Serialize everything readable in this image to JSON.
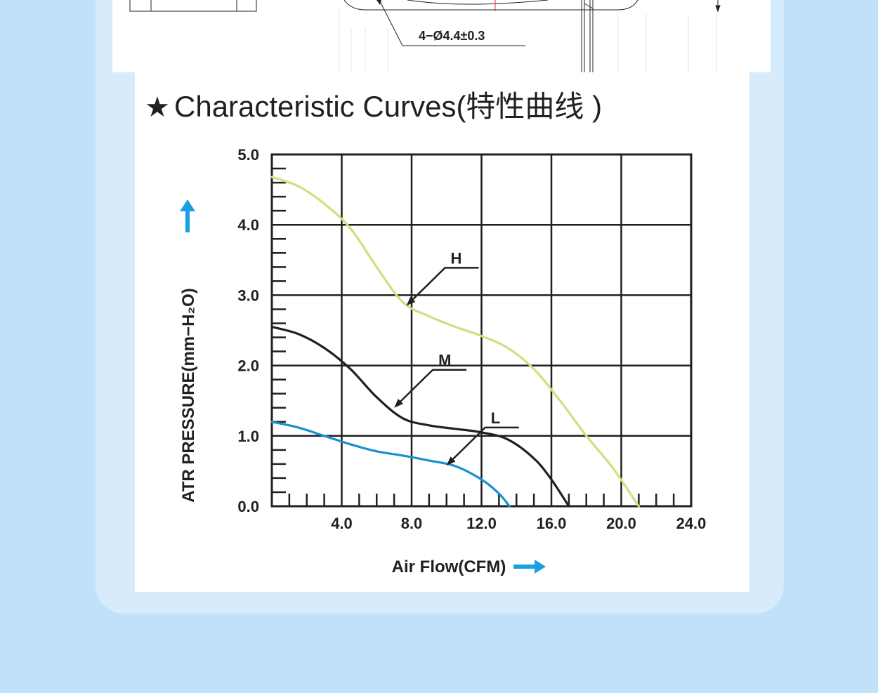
{
  "drawing": {
    "hole_dimension": "4−Ø4.4±0.3"
  },
  "section": {
    "star": "★",
    "title": "Characteristic Curves(特性曲线 )"
  },
  "colors": {
    "page_bg": "#bfe1fa",
    "panel_bg": "#d6ebfc",
    "grid": "#231f20",
    "curve_H": "#cfe07c",
    "curve_M": "#231f20",
    "curve_L": "#1790d2",
    "arrow_accent": "#1a9fe0"
  },
  "chart_data": {
    "type": "line",
    "title": "Characteristic Curves(特性曲线 )",
    "xlabel": "Air Flow(CFM)",
    "ylabel": "ATR PRESSURE(mm−H₂O)",
    "xlim": [
      0,
      24
    ],
    "ylim": [
      0,
      5
    ],
    "x_ticks": [
      "4.0",
      "8.0",
      "12.0",
      "16.0",
      "20.0",
      "24.0"
    ],
    "y_ticks": [
      "0.0",
      "1.0",
      "2.0",
      "3.0",
      "4.0",
      "5.0"
    ],
    "grid": true,
    "series": [
      {
        "name": "H",
        "color": "#cfe07c",
        "points": [
          [
            0,
            4.68
          ],
          [
            1.5,
            4.55
          ],
          [
            3.0,
            4.3
          ],
          [
            4.5,
            3.95
          ],
          [
            6.0,
            3.4
          ],
          [
            7.5,
            2.9
          ],
          [
            9.0,
            2.7
          ],
          [
            10.5,
            2.55
          ],
          [
            12.0,
            2.42
          ],
          [
            13.5,
            2.25
          ],
          [
            15.0,
            1.95
          ],
          [
            16.5,
            1.5
          ],
          [
            18.0,
            1.0
          ],
          [
            19.5,
            0.55
          ],
          [
            21.0,
            0.0
          ]
        ]
      },
      {
        "name": "M",
        "color": "#231f20",
        "points": [
          [
            0,
            2.55
          ],
          [
            1.5,
            2.45
          ],
          [
            3.0,
            2.25
          ],
          [
            4.5,
            1.95
          ],
          [
            6.0,
            1.55
          ],
          [
            7.5,
            1.25
          ],
          [
            9.0,
            1.15
          ],
          [
            10.5,
            1.1
          ],
          [
            12.0,
            1.05
          ],
          [
            13.5,
            0.95
          ],
          [
            15.0,
            0.68
          ],
          [
            16.0,
            0.38
          ],
          [
            17.0,
            0.0
          ]
        ]
      },
      {
        "name": "L",
        "color": "#1790d2",
        "points": [
          [
            0,
            1.2
          ],
          [
            1.5,
            1.12
          ],
          [
            3.0,
            1.0
          ],
          [
            4.5,
            0.88
          ],
          [
            6.0,
            0.78
          ],
          [
            7.5,
            0.72
          ],
          [
            9.0,
            0.65
          ],
          [
            10.5,
            0.57
          ],
          [
            12.0,
            0.38
          ],
          [
            13.0,
            0.18
          ],
          [
            13.6,
            0.0
          ]
        ]
      }
    ],
    "annotations": [
      {
        "label": "H",
        "series": "H",
        "points_to": [
          7.7,
          2.85
        ]
      },
      {
        "label": "M",
        "series": "M",
        "points_to": [
          7.0,
          1.4
        ]
      },
      {
        "label": "L",
        "series": "L",
        "points_to": [
          10.0,
          0.58
        ]
      }
    ]
  }
}
